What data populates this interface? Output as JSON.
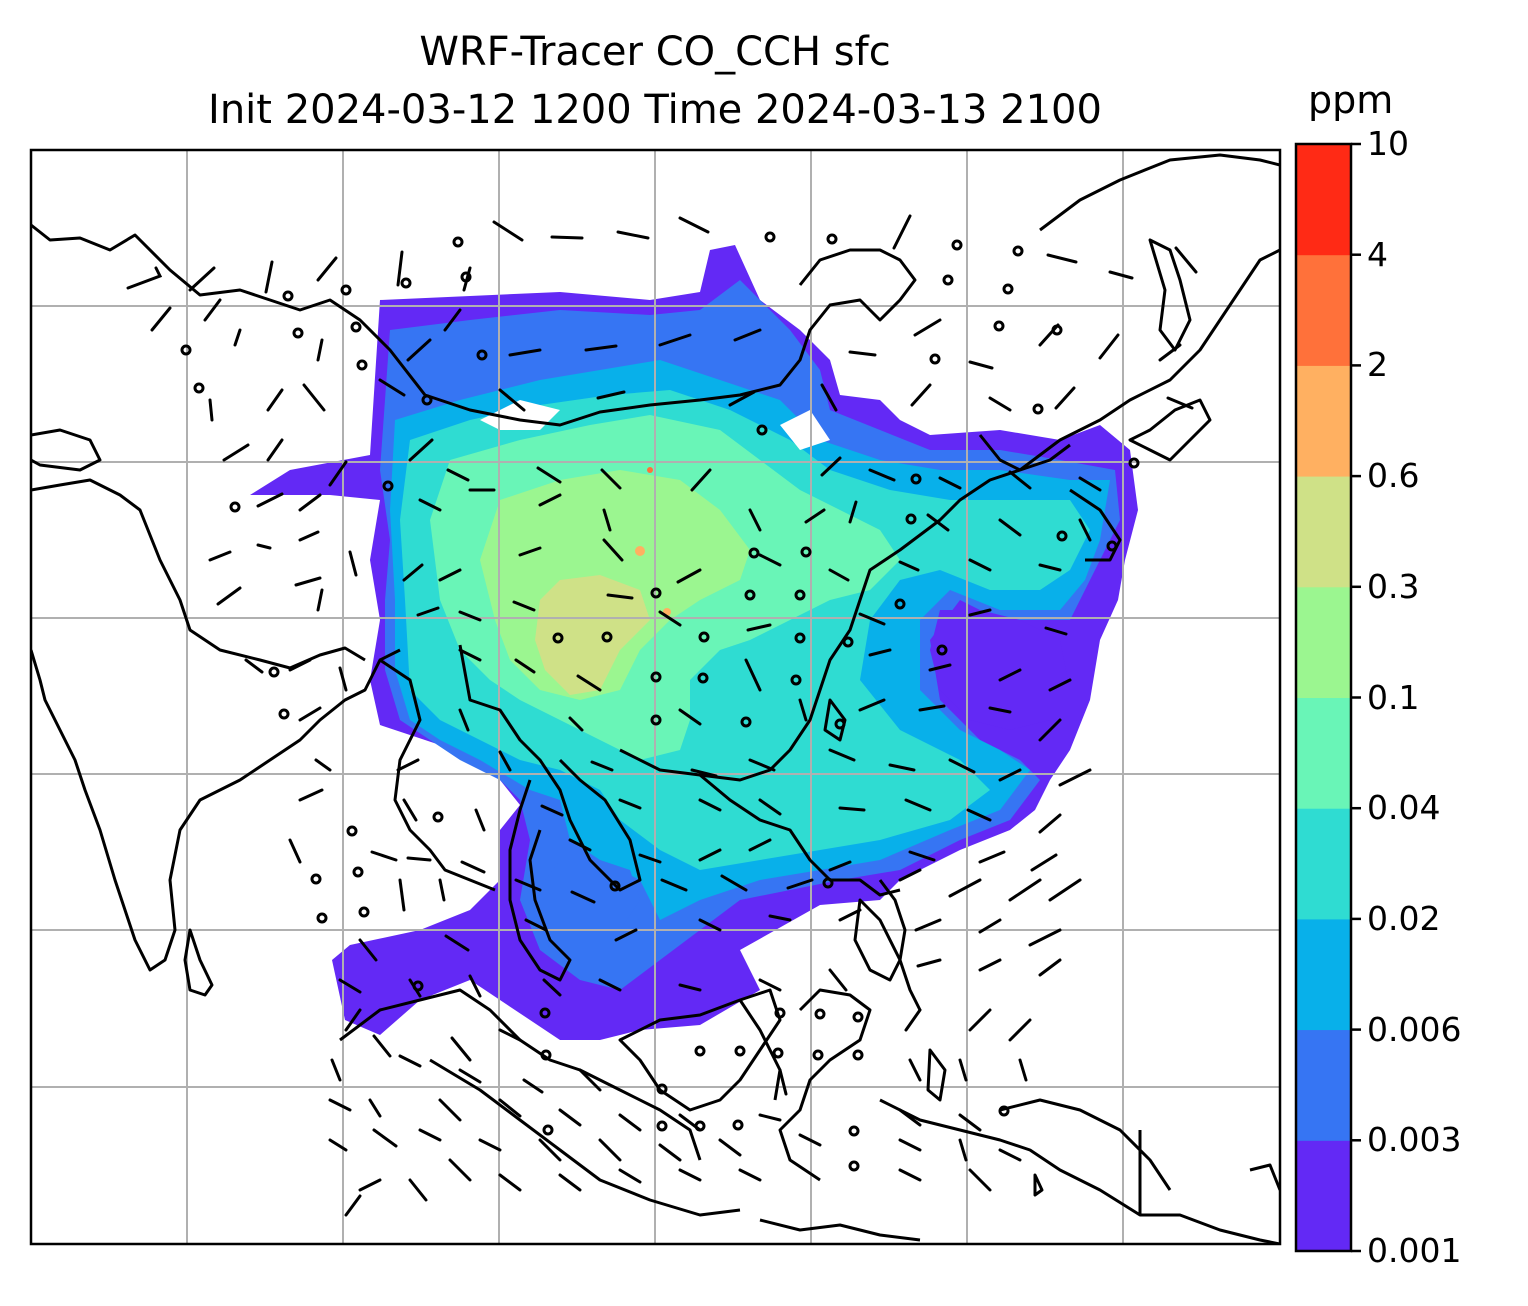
{
  "title": {
    "line1": "WRF-Tracer CO_CCH sfc",
    "line2": "Init 2024-03-12 1200 Time 2024-03-13 2100"
  },
  "colorbar": {
    "unit": "ppm",
    "levels": [
      "0.001",
      "0.003",
      "0.006",
      "0.02",
      "0.04",
      "0.1",
      "0.3",
      "0.6",
      "2",
      "4",
      "10"
    ],
    "colors": [
      "#6329f5",
      "#3675f3",
      "#08b0ea",
      "#2fdcd2",
      "#69f5b7",
      "#9bf690",
      "#cfe187",
      "#ffb061",
      "#ff713a",
      "#ff2a15"
    ]
  },
  "map": {
    "gridlines": true,
    "coastlines": true,
    "wind_barbs": true,
    "field": "CO_CCH surface tracer concentration",
    "colors": {
      "coast": "#000000",
      "grid": "#b0b0b0"
    }
  }
}
